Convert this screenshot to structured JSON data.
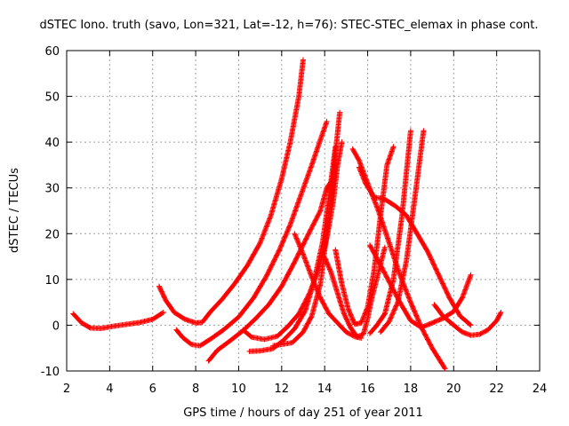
{
  "chart_data": {
    "type": "scatter",
    "title": "dSTEC Iono. truth (savo, Lon=321, Lat=-12, h=76): STEC-STEC_elemax in phase cont.",
    "xlabel": "GPS time / hours of day 251 of year 2011",
    "ylabel": "dSTEC  / TECUs",
    "xlim": [
      2,
      24
    ],
    "ylim": [
      -10,
      60
    ],
    "xticks": [
      "2",
      "4",
      "6",
      "8",
      "10",
      "12",
      "14",
      "16",
      "18",
      "20",
      "22",
      "24"
    ],
    "yticks": [
      "-10",
      "0",
      "10",
      "20",
      "30",
      "40",
      "50",
      "60"
    ],
    "grid": true,
    "marker": "+",
    "color": "#ff0000",
    "series": [
      {
        "x": [
          2.3,
          2.7,
          3.1,
          3.6,
          4.2,
          4.8,
          5.4,
          6.0,
          6.5
        ],
        "y": [
          2.5,
          0.5,
          -0.6,
          -0.7,
          -0.2,
          0.2,
          0.6,
          1.3,
          2.8
        ]
      },
      {
        "x": [
          6.3,
          6.6,
          7.0,
          7.5,
          8.0,
          8.3,
          8.7,
          9.2,
          9.8,
          10.4,
          11.0,
          11.5,
          12.0,
          12.4,
          12.8,
          13.0
        ],
        "y": [
          8.5,
          5.5,
          2.8,
          1.3,
          0.5,
          0.6,
          3.0,
          5.5,
          9.0,
          13.0,
          18.0,
          24.0,
          32.0,
          40.0,
          50.0,
          58.0
        ]
      },
      {
        "x": [
          7.1,
          7.4,
          7.8,
          8.2,
          8.7,
          9.3,
          10.0,
          10.7,
          11.3,
          11.9,
          12.4,
          12.9,
          13.4,
          13.8,
          14.1
        ],
        "y": [
          -1.0,
          -2.7,
          -4.2,
          -4.5,
          -3.0,
          -1.0,
          1.8,
          6.0,
          10.8,
          16.5,
          22.0,
          28.5,
          35.0,
          40.5,
          44.5
        ]
      },
      {
        "x": [
          8.6,
          9.0,
          9.6,
          10.2,
          10.8,
          11.4,
          12.0,
          12.6,
          13.2,
          13.8,
          14.1,
          14.4
        ],
        "y": [
          -7.8,
          -5.5,
          -3.4,
          -1.2,
          1.5,
          4.5,
          8.5,
          13.8,
          19.5,
          25.0,
          30.0,
          32.0
        ]
      },
      {
        "x": [
          10.2,
          10.6,
          11.2,
          11.8,
          12.3,
          12.8,
          13.3,
          13.7,
          14.1,
          14.4,
          14.6,
          14.8
        ],
        "y": [
          -1.0,
          -2.6,
          -3.1,
          -2.4,
          -0.2,
          2.5,
          7.0,
          12.0,
          19.0,
          27.0,
          35.0,
          40.0
        ]
      },
      {
        "x": [
          10.5,
          11.0,
          11.6,
          12.1,
          12.6,
          13.1,
          13.5,
          13.9,
          14.2,
          14.5
        ],
        "y": [
          -5.7,
          -5.6,
          -5.1,
          -3.2,
          -0.8,
          3.2,
          9.5,
          18.0,
          28.0,
          39.0
        ]
      },
      {
        "x": [
          11.6,
          12.0,
          12.5,
          13.0,
          13.4,
          13.8,
          14.1,
          14.4,
          14.7
        ],
        "y": [
          -4.5,
          -4.2,
          -3.8,
          -1.5,
          2.0,
          9.0,
          20.0,
          33.0,
          46.5
        ]
      },
      {
        "x": [
          12.6,
          13.0,
          13.4,
          13.8,
          14.2,
          14.6,
          15.0,
          15.4,
          15.7
        ],
        "y": [
          20.0,
          15.5,
          10.5,
          6.0,
          2.5,
          0.5,
          -1.5,
          -2.5,
          -2.8
        ]
      },
      {
        "x": [
          14.0,
          14.3,
          14.6,
          14.9,
          15.2,
          15.5,
          15.8,
          16.0,
          16.2,
          16.5,
          16.8
        ],
        "y": [
          14.8,
          11.5,
          7.0,
          2.5,
          -0.5,
          -2.5,
          -2.0,
          1.5,
          6.0,
          11.5,
          17.0
        ]
      },
      {
        "x": [
          14.5,
          14.8,
          15.1,
          15.4,
          15.7,
          16.0,
          16.3,
          16.6,
          16.9,
          17.2
        ],
        "y": [
          16.5,
          9.0,
          3.5,
          0.2,
          0.5,
          4.0,
          12.0,
          24.0,
          35.0,
          39.0
        ]
      },
      {
        "x": [
          15.3,
          15.6,
          16.0,
          16.5,
          17.0,
          17.5,
          18.0,
          18.5,
          19.0,
          19.6
        ],
        "y": [
          38.5,
          36.0,
          31.0,
          25.0,
          18.0,
          11.0,
          5.0,
          -0.5,
          -5.0,
          -9.5
        ]
      },
      {
        "x": [
          15.6,
          15.9,
          16.3,
          16.8,
          17.3,
          17.8,
          18.3,
          18.8,
          19.3,
          19.8,
          20.3,
          20.8
        ],
        "y": [
          34.5,
          31.0,
          28.0,
          27.5,
          26.0,
          24.0,
          20.0,
          16.0,
          11.0,
          6.0,
          2.0,
          0.0
        ]
      },
      {
        "x": [
          16.1,
          16.5,
          17.0,
          17.5,
          18.0,
          18.5,
          19.0,
          19.5,
          20.0,
          20.4,
          20.8
        ],
        "y": [
          17.5,
          14.0,
          9.5,
          5.0,
          1.0,
          -0.5,
          0.5,
          1.5,
          3.0,
          6.0,
          11.0
        ]
      },
      {
        "x": [
          16.1,
          16.4,
          16.8,
          17.2,
          17.6,
          18.0
        ],
        "y": [
          -1.8,
          -0.2,
          2.5,
          10.0,
          24.0,
          42.5
        ]
      },
      {
        "x": [
          16.6,
          17.0,
          17.4,
          17.8,
          18.2,
          18.6
        ],
        "y": [
          -1.5,
          0.8,
          5.0,
          14.0,
          28.0,
          42.5
        ]
      },
      {
        "x": [
          19.1,
          19.5,
          20.0,
          20.4,
          20.8,
          21.2,
          21.6,
          22.0,
          22.2
        ],
        "y": [
          4.5,
          2.0,
          0.0,
          -1.5,
          -2.2,
          -2.0,
          -1.0,
          1.0,
          2.8
        ]
      }
    ]
  }
}
